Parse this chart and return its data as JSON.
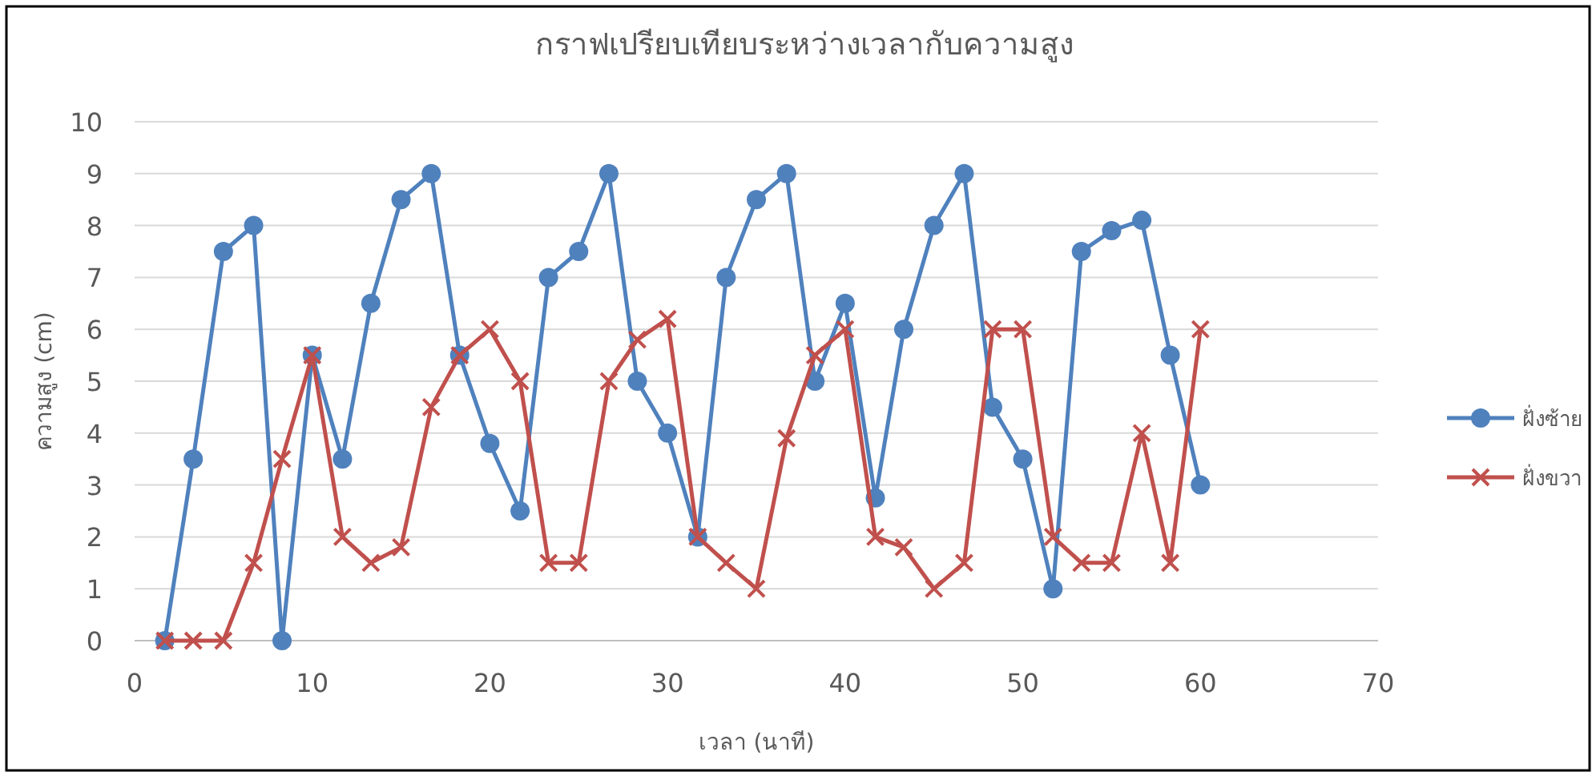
{
  "chart_data": {
    "type": "line",
    "title": "กราฟเปรียบเทียบระหว่างเวลากับความสูง",
    "xlabel": "เวลา (นาที)",
    "ylabel": "ความสูง (cm)",
    "x": [
      1.7,
      3.3,
      5,
      6.7,
      8.3,
      10,
      11.7,
      13.3,
      15,
      16.7,
      18.3,
      20,
      21.7,
      23.3,
      25,
      26.7,
      28.3,
      30,
      31.7,
      33.3,
      35,
      36.7,
      38.3,
      40,
      41.7,
      43.3,
      45,
      46.7,
      48.3,
      50,
      51.7,
      53.3,
      55,
      56.7,
      58.3,
      60
    ],
    "series": [
      {
        "name": "ฝั่งซ้าย",
        "color": "#4f81bd",
        "marker": "circle",
        "values": [
          0,
          3.5,
          7.5,
          8,
          0,
          5.5,
          3.5,
          6.5,
          8.5,
          9,
          5.5,
          3.8,
          2.5,
          7,
          7.5,
          9,
          5,
          4,
          2,
          7,
          8.5,
          9,
          5,
          6.5,
          2.75,
          6,
          8,
          9,
          4.5,
          3.5,
          1,
          7.5,
          7.9,
          8.1,
          5.5,
          3
        ]
      },
      {
        "name": "ฝั่งขวา",
        "color": "#c0504d",
        "marker": "cross",
        "values": [
          0,
          0,
          0,
          1.5,
          3.5,
          5.5,
          2,
          1.5,
          1.8,
          4.5,
          5.5,
          6,
          5,
          1.5,
          1.5,
          5,
          5.8,
          6.2,
          2,
          1.5,
          1,
          3.9,
          5.5,
          6,
          2,
          1.8,
          1,
          1.5,
          6,
          6,
          2,
          1.5,
          1.5,
          4,
          1.5,
          6
        ]
      }
    ],
    "xlim": [
      0,
      70
    ],
    "xticks": [
      0,
      10,
      20,
      30,
      40,
      50,
      60,
      70
    ],
    "ylim": [
      0,
      10
    ],
    "yticks": [
      0,
      1,
      2,
      3,
      4,
      5,
      6,
      7,
      8,
      9,
      10
    ],
    "grid": "y",
    "legend": "right",
    "line_style": "solid"
  }
}
